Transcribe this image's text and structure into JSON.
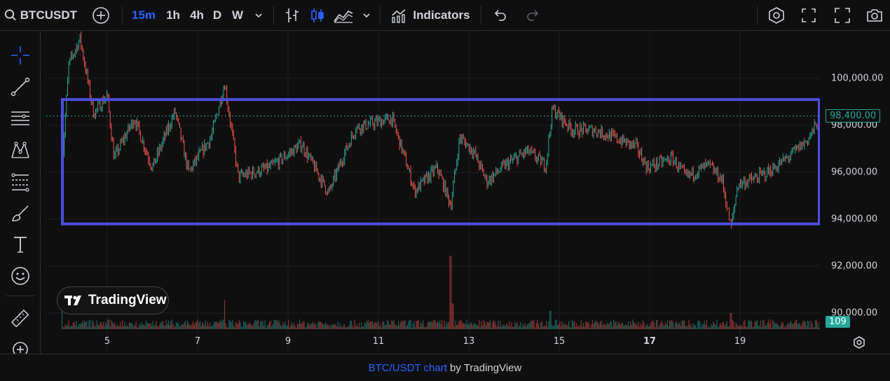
{
  "toolbar": {
    "symbol": "BTCUSDT",
    "intervals": [
      "15m",
      "1h",
      "4h",
      "D",
      "W"
    ],
    "active_interval": "15m",
    "indicators_label": "Indicators"
  },
  "chart": {
    "accent_color": "#2962ff",
    "up_color": "#26a69a",
    "down_color": "#ef5350",
    "rectangle_color": "#4d4ee0",
    "watermark": "TradingView",
    "price_badge": "98,400.00",
    "volume_badge": "109"
  },
  "chart_data": {
    "type": "candlestick",
    "xlabel": "",
    "ylabel": "",
    "y_ticks": [
      "100,000.00",
      "98,000.00",
      "96,000.00",
      "94,000.00",
      "92,000.00",
      "90,000.00"
    ],
    "x_ticks": [
      "5",
      "7",
      "9",
      "11",
      "13",
      "15",
      "17",
      "19"
    ],
    "ylim": [
      89500,
      101900
    ],
    "current_price": 98400,
    "current_volume": 109,
    "range_box": {
      "top_price": 99100,
      "bottom_price": 93800
    },
    "trend": [
      {
        "day": 4.0,
        "price": 96200
      },
      {
        "day": 4.15,
        "price": 100600
      },
      {
        "day": 4.4,
        "price": 101700
      },
      {
        "day": 4.7,
        "price": 98500
      },
      {
        "day": 5.0,
        "price": 99300
      },
      {
        "day": 5.15,
        "price": 96600
      },
      {
        "day": 5.6,
        "price": 98300
      },
      {
        "day": 5.9,
        "price": 96700
      },
      {
        "day": 6.0,
        "price": 96200
      },
      {
        "day": 6.5,
        "price": 98600
      },
      {
        "day": 6.8,
        "price": 96000
      },
      {
        "day": 7.3,
        "price": 97500
      },
      {
        "day": 7.6,
        "price": 99800
      },
      {
        "day": 7.9,
        "price": 95800
      },
      {
        "day": 8.6,
        "price": 96200
      },
      {
        "day": 9.3,
        "price": 97200
      },
      {
        "day": 9.9,
        "price": 95100
      },
      {
        "day": 10.2,
        "price": 96600
      },
      {
        "day": 10.5,
        "price": 97900
      },
      {
        "day": 11.3,
        "price": 98300
      },
      {
        "day": 11.6,
        "price": 96500
      },
      {
        "day": 11.8,
        "price": 95200
      },
      {
        "day": 12.3,
        "price": 96200
      },
      {
        "day": 12.6,
        "price": 94600
      },
      {
        "day": 12.8,
        "price": 97500
      },
      {
        "day": 13.1,
        "price": 96900
      },
      {
        "day": 13.4,
        "price": 95600
      },
      {
        "day": 13.8,
        "price": 96300
      },
      {
        "day": 14.3,
        "price": 96900
      },
      {
        "day": 14.7,
        "price": 96300
      },
      {
        "day": 14.85,
        "price": 98700
      },
      {
        "day": 15.3,
        "price": 97800
      },
      {
        "day": 15.8,
        "price": 97800
      },
      {
        "day": 16.7,
        "price": 97100
      },
      {
        "day": 16.95,
        "price": 96200
      },
      {
        "day": 17.5,
        "price": 96600
      },
      {
        "day": 17.8,
        "price": 95800
      },
      {
        "day": 18.3,
        "price": 96300
      },
      {
        "day": 18.6,
        "price": 95700
      },
      {
        "day": 18.8,
        "price": 93600
      },
      {
        "day": 18.95,
        "price": 95500
      },
      {
        "day": 19.3,
        "price": 95700
      },
      {
        "day": 19.7,
        "price": 96100
      },
      {
        "day": 20.1,
        "price": 96700
      },
      {
        "day": 20.5,
        "price": 97400
      },
      {
        "day": 20.8,
        "price": 98400
      }
    ],
    "volume_spikes": [
      {
        "day": 12.6,
        "volume": 1.0
      },
      {
        "day": 12.65,
        "volume": 0.35
      },
      {
        "day": 7.6,
        "volume": 0.4
      },
      {
        "day": 4.0,
        "volume": 0.3
      },
      {
        "day": 14.8,
        "volume": 0.25
      },
      {
        "day": 18.8,
        "volume": 0.22
      }
    ]
  },
  "footer": {
    "link_text": "BTC/USDT chart",
    "suffix": " by TradingView"
  }
}
